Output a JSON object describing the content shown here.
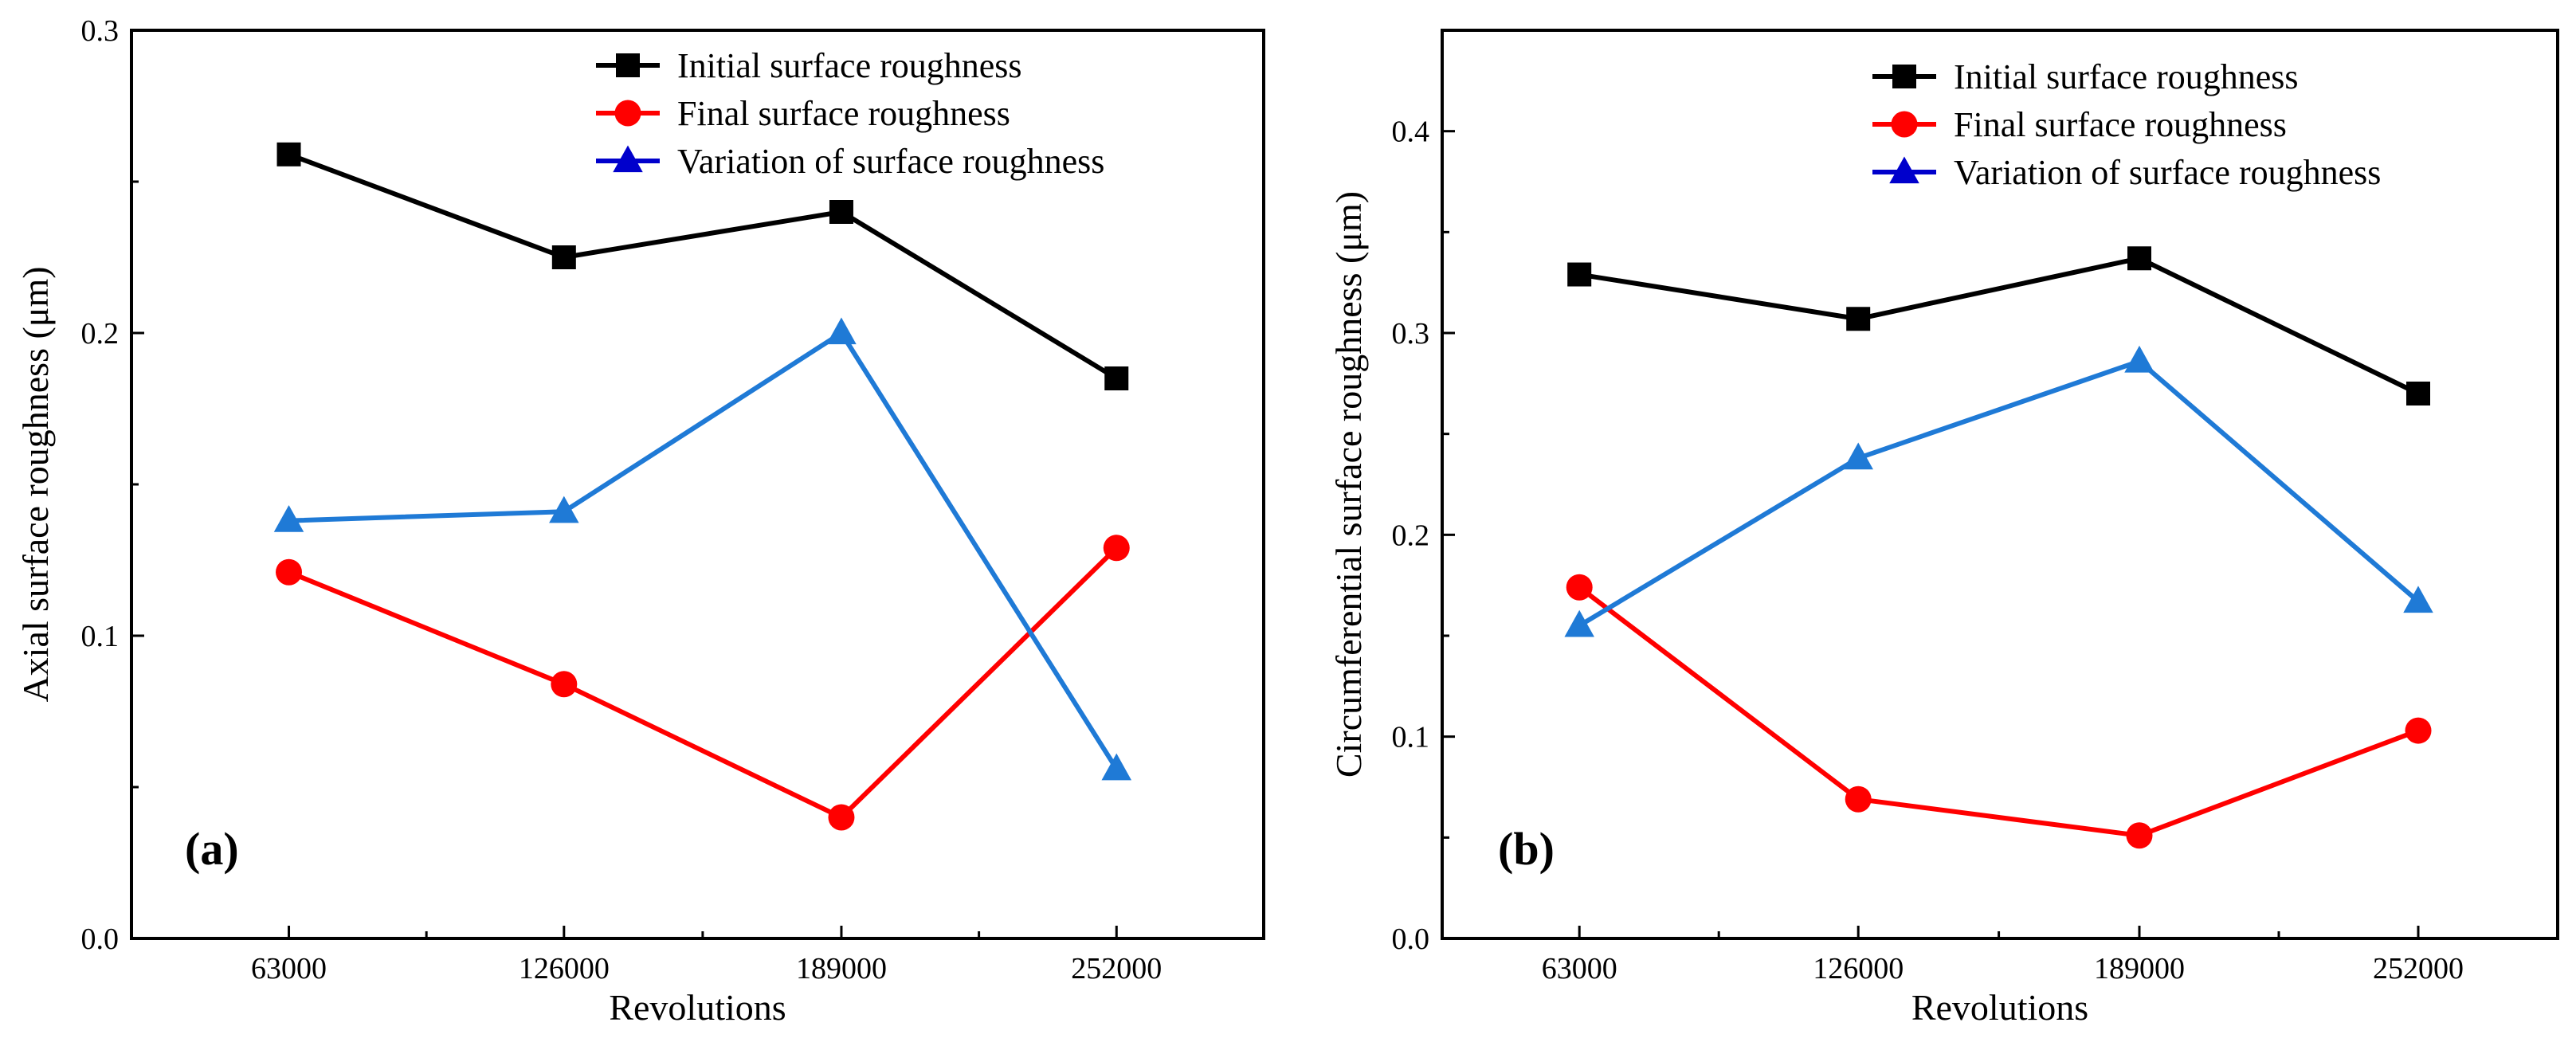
{
  "colors": {
    "initial": "#000000",
    "final": "#ff0000",
    "variation_line": "#1f7ad6",
    "variation_marker": "#1f7ad6",
    "variation_legend_line": "#0000cc"
  },
  "chart_data": [
    {
      "type": "line",
      "panel_label": "(a)",
      "xlabel": "Revolutions",
      "ylabel": "Axial surface roughness (μm)",
      "categories": [
        "63000",
        "126000",
        "189000",
        "252000"
      ],
      "ylim": [
        0,
        0.3
      ],
      "yticks": [
        0.0,
        0.1,
        0.2,
        0.3
      ],
      "ytick_labels": [
        "0.0",
        "0.1",
        "0.2",
        "0.3"
      ],
      "legend_position": "top-right",
      "series": [
        {
          "name": "Initial surface roughness",
          "color_key": "initial",
          "marker": "square",
          "values": [
            0.259,
            0.225,
            0.24,
            0.185
          ]
        },
        {
          "name": "Final surface roughness",
          "color_key": "final",
          "marker": "circle",
          "values": [
            0.121,
            0.084,
            0.04,
            0.129
          ]
        },
        {
          "name": "Variation of surface roughness",
          "color_key": "variation_line",
          "marker": "triangle",
          "values": [
            0.138,
            0.141,
            0.2,
            0.056
          ]
        }
      ]
    },
    {
      "type": "line",
      "panel_label": "(b)",
      "xlabel": "Revolutions",
      "ylabel": "Circumferential surface roughness (μm)",
      "categories": [
        "63000",
        "126000",
        "189000",
        "252000"
      ],
      "ylim": [
        0,
        0.45
      ],
      "yticks": [
        0.0,
        0.1,
        0.2,
        0.3,
        0.4
      ],
      "ytick_labels": [
        "0.0",
        "0.1",
        "0.2",
        "0.3",
        "0.4"
      ],
      "legend_position": "top-right",
      "series": [
        {
          "name": "Initial surface roughness",
          "color_key": "initial",
          "marker": "square",
          "values": [
            0.329,
            0.307,
            0.337,
            0.27
          ]
        },
        {
          "name": "Final surface roughness",
          "color_key": "final",
          "marker": "circle",
          "values": [
            0.174,
            0.069,
            0.051,
            0.103
          ]
        },
        {
          "name": "Variation of surface roughness",
          "color_key": "variation_line",
          "marker": "triangle",
          "values": [
            0.155,
            0.238,
            0.286,
            0.167
          ]
        }
      ]
    }
  ]
}
